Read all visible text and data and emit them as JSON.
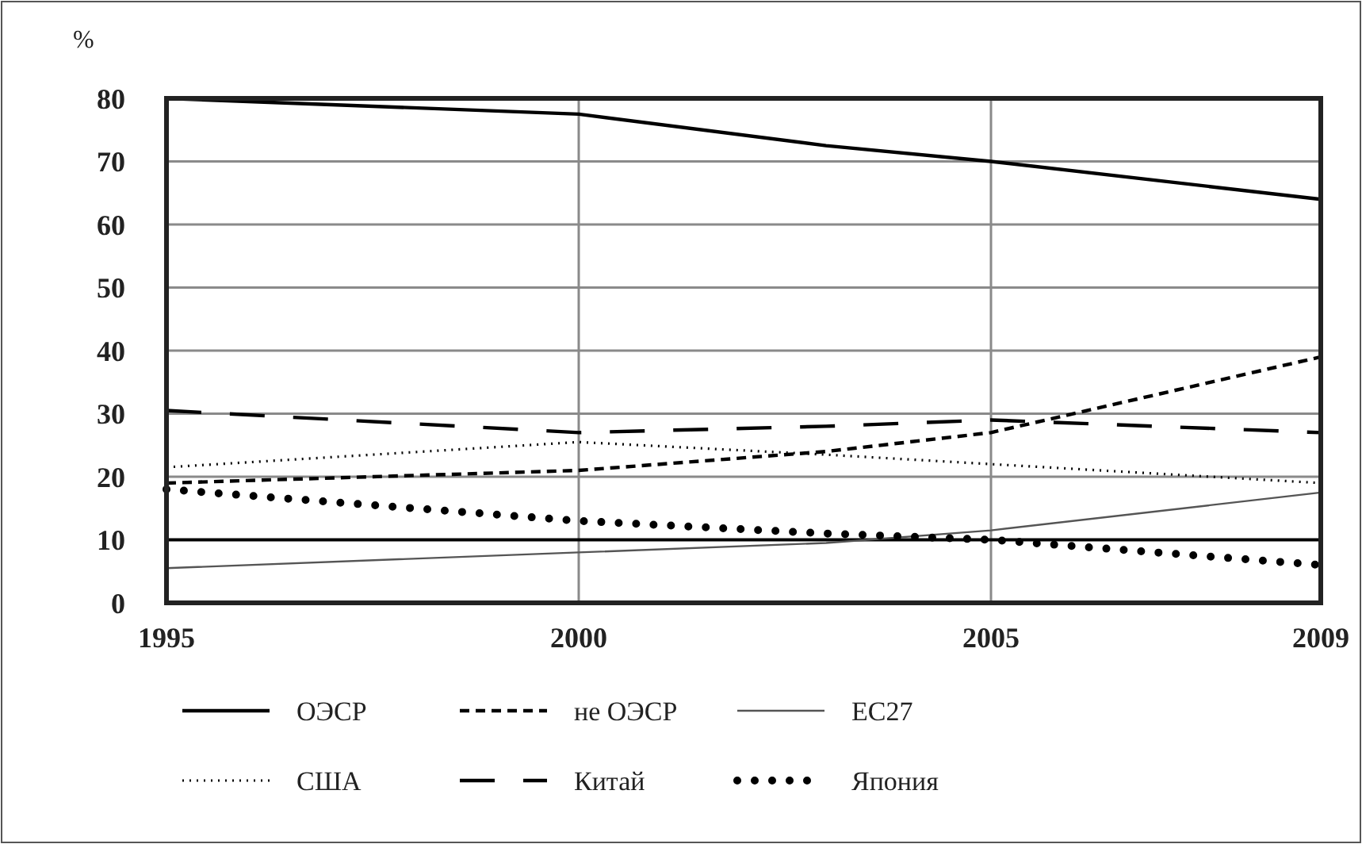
{
  "chart_data": {
    "type": "line",
    "ylabel": "%",
    "x": [
      1995,
      2000,
      2003,
      2005,
      2009
    ],
    "xlim": [
      1995,
      2009
    ],
    "xticks": [
      1995,
      2000,
      2005,
      2009
    ],
    "ylim": [
      0,
      80
    ],
    "yticks": [
      0,
      10,
      20,
      30,
      40,
      50,
      60,
      70,
      80
    ],
    "grid": true,
    "legend": "bottom",
    "marker": "none",
    "ref_lines": [
      {
        "axis": "y",
        "value": 10,
        "color": "#000000"
      }
    ],
    "series": [
      {
        "name": "ОЭСР",
        "color": "#000000",
        "line_style": "solid",
        "values": [
          80,
          77.5,
          72.5,
          70,
          64
        ]
      },
      {
        "name": "не ОЭСР",
        "color": "#000000",
        "line_style": "dashed",
        "values": [
          19,
          21,
          24,
          27,
          39
        ]
      },
      {
        "name": "ЕС27",
        "color": "#555555",
        "line_style": "solid",
        "values": [
          5.5,
          8,
          9.5,
          11.5,
          17.5
        ]
      },
      {
        "name": "США",
        "color": "#000000",
        "line_style": "dotted",
        "values": [
          21.5,
          25.5,
          23.5,
          22,
          19
        ]
      },
      {
        "name": "Китай",
        "color": "#000000",
        "line_style": "dashed",
        "values": [
          30.5,
          27,
          28,
          29,
          27
        ]
      },
      {
        "name": "Япония",
        "color": "#000000",
        "line_style": "dotted",
        "values": [
          18,
          13,
          11,
          10,
          6
        ]
      }
    ]
  }
}
